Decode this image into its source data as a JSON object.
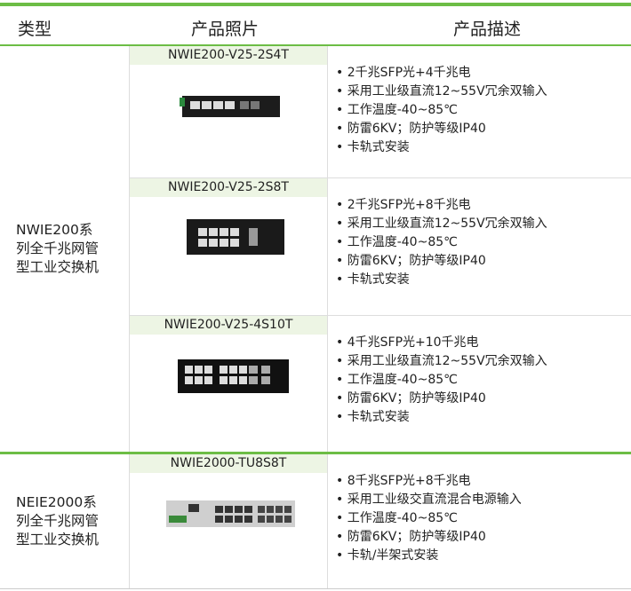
{
  "header": {
    "columns": [
      "类型",
      "产品照片",
      "产品描述"
    ]
  },
  "groups": [
    {
      "category_lines": [
        "NWIE200系",
        "列全千兆网管",
        "型工业交换机"
      ],
      "products": [
        {
          "name": "NWIE200-V25-2S4T",
          "features": [
            "2千兆SFP光+4千兆电",
            "采用工业级直流12~55V冗余双输入",
            "工作温度-40~85℃",
            "防雷6KV；防护等级IP40",
            "卡轨式安装"
          ]
        },
        {
          "name": "NWIE200-V25-2S8T",
          "features": [
            "2千兆SFP光+8千兆电",
            "采用工业级直流12~55V冗余双输入",
            "工作温度-40~85℃",
            "防雷6KV；防护等级IP40",
            "卡轨式安装"
          ]
        },
        {
          "name": "NWIE200-V25-4S10T",
          "features": [
            "4千兆SFP光+10千兆电",
            "采用工业级直流12~55V冗余双输入",
            "工作温度-40~85℃",
            "防雷6KV；防护等级IP40",
            "卡轨式安装"
          ]
        }
      ]
    },
    {
      "category_lines": [
        "NEIE2000系",
        "列全千兆网管",
        "型工业交换机"
      ],
      "products": [
        {
          "name": "NWIE2000-TU8S8T",
          "features": [
            "8千兆SFP光+8千兆电",
            "采用工业级交直流混合电源输入",
            "工作温度-40~85℃",
            "防雷6KV；防护等级IP40",
            "卡轨/半架式安装"
          ]
        }
      ]
    }
  ]
}
